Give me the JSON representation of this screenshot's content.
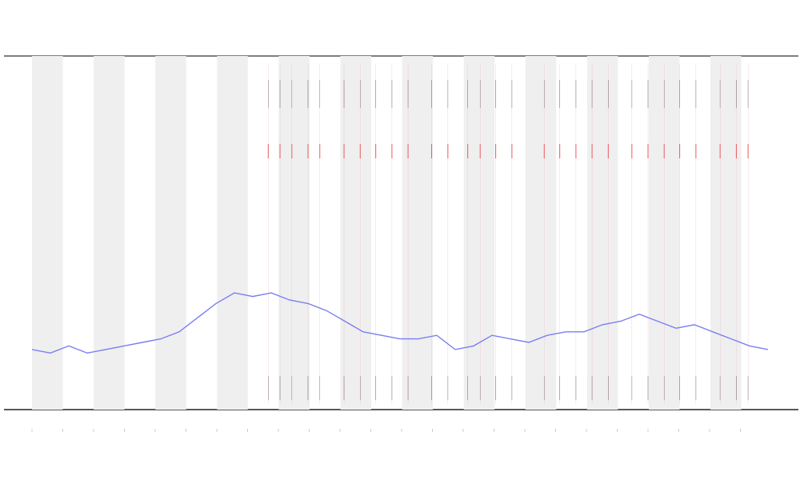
{
  "chart_data": {
    "type": "line",
    "x": [
      0,
      2.5,
      5,
      7.5,
      10,
      12.5,
      15,
      17.5,
      20,
      22.5,
      25,
      27.5,
      30,
      32.5,
      35,
      37.5,
      40,
      42.5,
      45,
      47.5,
      50,
      52.5,
      55,
      57.5,
      60,
      62.5,
      65,
      67.5,
      70,
      72.5,
      75,
      77.5,
      80,
      82.5,
      85,
      87.5,
      90,
      92.5,
      95,
      97.5,
      100
    ],
    "values": [
      17,
      16,
      18,
      16,
      17,
      18,
      19,
      20,
      22,
      26,
      30,
      33,
      32,
      33,
      31,
      30,
      28,
      25,
      22,
      21,
      20,
      20,
      21,
      17,
      18,
      21,
      20,
      19,
      21,
      22,
      22,
      24,
      25,
      27,
      25,
      23,
      24,
      22,
      20,
      18,
      17
    ],
    "color": "#7b7ff0",
    "markers": [
      32.1,
      33.7,
      35.3,
      37.5,
      39.1,
      42.4,
      44.6,
      46.7,
      48.9,
      51.1,
      54.3,
      56.5,
      59.2,
      60.9,
      63,
      65.2,
      69.6,
      71.7,
      73.9,
      76.1,
      78.3,
      81.5,
      83.7,
      85.9,
      88,
      90.2,
      93.5,
      95.7,
      97.3
    ],
    "xlim": [
      0,
      100
    ],
    "ylim": [
      0,
      100
    ]
  }
}
